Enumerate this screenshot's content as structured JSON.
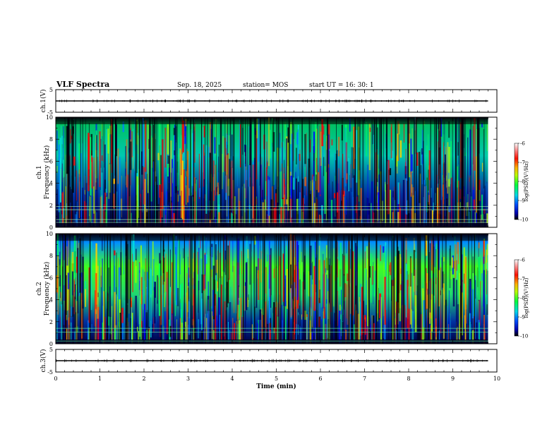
{
  "header": {
    "title": "VLF Spectra",
    "date": "Sep. 18, 2025",
    "station": "station= MOS",
    "start": "start  UT =   16: 30: 1"
  },
  "chart_data": [
    {
      "type": "line",
      "panel": "waveform-top",
      "ylabel": "ch.1(V)",
      "ylim": [
        -5,
        5
      ],
      "yticks": [
        "5",
        "-5"
      ],
      "xlim": [
        0,
        10
      ],
      "series": [
        {
          "x": [
            0,
            9.8
          ],
          "values": [
            0,
            0
          ]
        }
      ]
    },
    {
      "type": "heatmap",
      "panel": "spectrogram-ch1",
      "ylabel": "ch.1 Frequency (kHz)",
      "ylim": [
        0,
        10
      ],
      "yticks": [
        "0",
        "2",
        "4",
        "6",
        "8",
        "10"
      ],
      "xlim": [
        0,
        10
      ],
      "data_extent_min": 9.8,
      "colorbar": {
        "label": "log(PSD)(V²/Hz)",
        "range": [
          -10,
          -6
        ],
        "ticks": [
          "-6",
          "-7",
          "-8",
          "-9",
          "-10"
        ]
      }
    },
    {
      "type": "heatmap",
      "panel": "spectrogram-ch2",
      "ylabel": "ch.2 Frequency (kHz)",
      "ylim": [
        0,
        10
      ],
      "yticks": [
        "0",
        "2",
        "4",
        "6",
        "8",
        "10"
      ],
      "xlim": [
        0,
        10
      ],
      "data_extent_min": 9.8,
      "colorbar": {
        "label": "log(PSD)(V²/Hz)",
        "range": [
          -10,
          -6
        ],
        "ticks": [
          "-6",
          "-7",
          "-8",
          "-9",
          "-10"
        ]
      }
    },
    {
      "type": "line",
      "panel": "waveform-bottom",
      "ylabel": "ch.3(V)",
      "ylim": [
        -5,
        5
      ],
      "yticks": [
        "5",
        "-5"
      ],
      "xlim": [
        0,
        10
      ],
      "xticks": [
        "0",
        "1",
        "2",
        "3",
        "4",
        "5",
        "6",
        "7",
        "8",
        "9",
        "10"
      ],
      "xlabel": "Time (min)",
      "series": [
        {
          "x": [
            0,
            9.8
          ],
          "values": [
            0,
            0
          ]
        }
      ]
    }
  ],
  "colormap": [
    "#000000",
    "#00007a",
    "#0000ff",
    "#0078ff",
    "#00e6e6",
    "#00ff66",
    "#66ff00",
    "#e6ff00",
    "#ffaa00",
    "#ff3300",
    "#ff0000",
    "#ffffff"
  ]
}
